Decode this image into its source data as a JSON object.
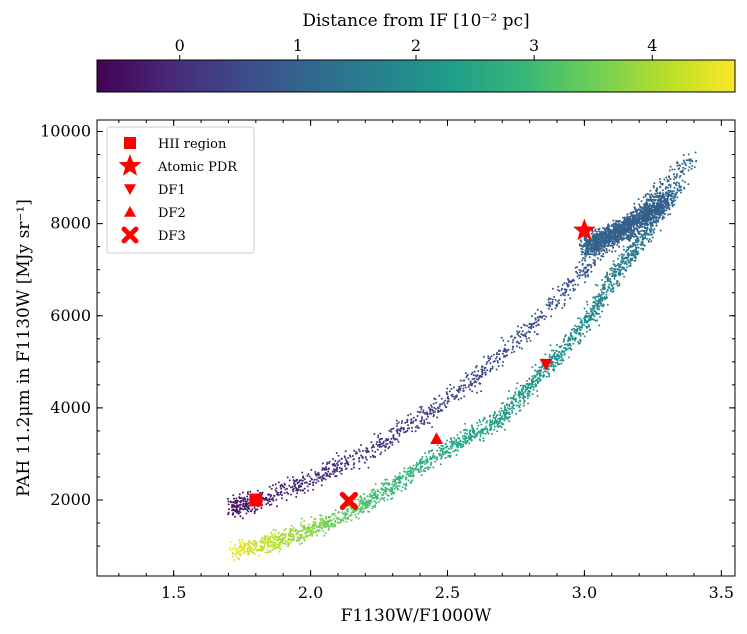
{
  "chart_data": {
    "type": "scatter",
    "xlabel": "F1130W/F1000W",
    "ylabel": "PAH 11.2μm in F1130W [MJy sr⁻¹]",
    "xlim": [
      1.22,
      3.55
    ],
    "ylim": [
      350,
      10250
    ],
    "xticks": [
      1.5,
      2.0,
      2.5,
      3.0,
      3.5
    ],
    "xtick_labels": [
      "1.5",
      "2.0",
      "2.5",
      "3.0",
      "3.5"
    ],
    "yticks": [
      2000,
      4000,
      6000,
      8000,
      10000
    ],
    "ytick_labels": [
      "2000",
      "4000",
      "6000",
      "8000",
      "10000"
    ],
    "colorbar": {
      "label": "Distance from IF [10⁻² pc]",
      "range": [
        -0.7,
        4.7
      ],
      "ticks": [
        0,
        1,
        2,
        3,
        4
      ],
      "tick_labels": [
        "0",
        "1",
        "2",
        "3",
        "4"
      ],
      "colormap": "viridis",
      "stops": [
        "#440154",
        "#482878",
        "#3e4989",
        "#31688e",
        "#26828e",
        "#1f9e89",
        "#35b779",
        "#6ece58",
        "#b5de2b",
        "#fde725"
      ]
    },
    "scatter_paths": [
      {
        "name": "upper-branch",
        "points": [
          [
            1.7,
            1820,
            -0.5
          ],
          [
            1.8,
            1950,
            -0.35
          ],
          [
            2.0,
            2450,
            0.0
          ],
          [
            2.2,
            3000,
            0.15
          ],
          [
            2.4,
            3750,
            0.3
          ],
          [
            2.6,
            4650,
            0.45
          ],
          [
            2.8,
            5700,
            0.6
          ],
          [
            3.0,
            7000,
            0.8
          ],
          [
            3.2,
            8300,
            1.0
          ],
          [
            3.4,
            9400,
            1.2
          ]
        ],
        "spread": 320,
        "count": 1300
      },
      {
        "name": "lower-branch",
        "points": [
          [
            1.72,
            880,
            4.5
          ],
          [
            1.9,
            1150,
            4.0
          ],
          [
            2.1,
            1600,
            3.4
          ],
          [
            2.3,
            2300,
            2.9
          ],
          [
            2.5,
            3100,
            2.5
          ],
          [
            2.7,
            3800,
            2.3
          ],
          [
            2.85,
            4800,
            2.1
          ],
          [
            3.0,
            5800,
            1.95
          ],
          [
            3.1,
            6800,
            1.7
          ],
          [
            3.2,
            7600,
            1.4
          ],
          [
            3.35,
            8900,
            1.2
          ]
        ],
        "spread": 300,
        "count": 2200
      },
      {
        "name": "upper-core",
        "points": [
          [
            3.0,
            7500,
            1.0
          ],
          [
            3.15,
            7900,
            0.95
          ],
          [
            3.3,
            8500,
            0.9
          ]
        ],
        "spread": 350,
        "count": 1400
      }
    ],
    "markers": [
      {
        "label": "HII region",
        "shape": "square",
        "x": 1.8,
        "y": 2000
      },
      {
        "label": "Atomic PDR",
        "shape": "star",
        "x": 3.0,
        "y": 7850
      },
      {
        "label": "DF1",
        "shape": "triangle-down",
        "x": 2.86,
        "y": 4950
      },
      {
        "label": "DF2",
        "shape": "triangle-up",
        "x": 2.46,
        "y": 3330
      },
      {
        "label": "DF3",
        "shape": "x-filled",
        "x": 2.14,
        "y": 1980
      }
    ],
    "marker_color": "#ff0000",
    "legend_position": "top-left"
  }
}
